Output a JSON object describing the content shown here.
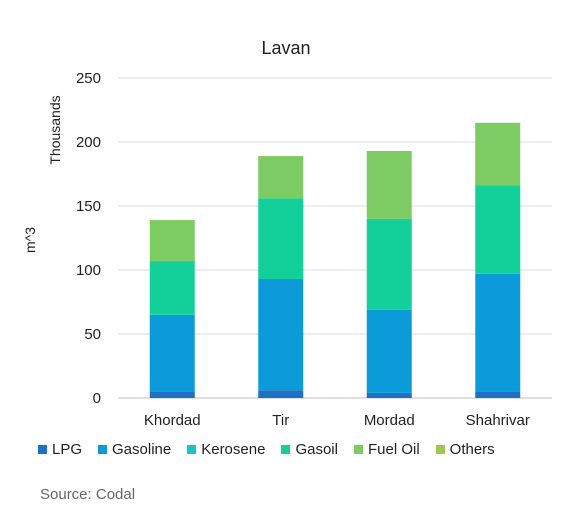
{
  "chart_data": {
    "type": "bar",
    "stacked": true,
    "title": "Lavan",
    "ylabel": "m^3",
    "yunit_label": "Thousands",
    "categories": [
      "Khordad",
      "Tir",
      "Mordad",
      "Shahrivar"
    ],
    "ylim": [
      0,
      250
    ],
    "yticks": [
      "0",
      "50",
      "100",
      "150",
      "200",
      "250"
    ],
    "grid": true,
    "legend_position": "bottom",
    "series": [
      {
        "name": "LPG",
        "color": "#1f6fc5",
        "values": [
          5,
          6,
          4,
          5
        ]
      },
      {
        "name": "Gasoline",
        "color": "#0a9bd8",
        "values": [
          60,
          87,
          65,
          92
        ]
      },
      {
        "name": "Kerosene",
        "color": "#15c6c8",
        "values": [
          0,
          0,
          0,
          0
        ]
      },
      {
        "name": "Gasoil",
        "color": "#13d09a",
        "values": [
          42,
          63,
          71,
          69
        ]
      },
      {
        "name": "Fuel Oil",
        "color": "#7dcb63",
        "values": [
          32,
          33,
          53,
          49
        ]
      },
      {
        "name": "Others",
        "color": "#a1c84a",
        "values": [
          0,
          0,
          0,
          0
        ]
      }
    ]
  },
  "source": "Source: Codal"
}
